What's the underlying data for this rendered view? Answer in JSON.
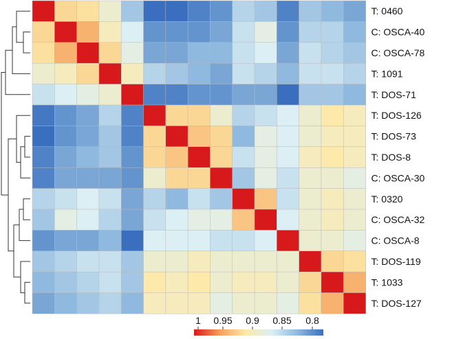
{
  "chart_data": {
    "type": "heatmap",
    "title": "",
    "xlabel": "",
    "ylabel": "",
    "labels": [
      "T: 0460",
      "C: OSCA-40",
      "C: OSCA-78",
      "T: 1091",
      "T: DOS-71",
      "T: DOS-126",
      "T: DOS-73",
      "T: DOS-8",
      "C: OSCA-30",
      "T: 0320",
      "C: OSCA-32",
      "C: OSCA-8",
      "T: DOS-119",
      "T: 1033",
      "T: DOS-127"
    ],
    "values": [
      [
        1.0,
        0.93,
        0.925,
        0.9,
        0.85,
        0.8,
        0.8,
        0.81,
        0.82,
        0.86,
        0.85,
        0.81,
        0.85,
        0.84,
        0.83
      ],
      [
        0.93,
        1.0,
        0.95,
        0.91,
        0.88,
        0.82,
        0.82,
        0.82,
        0.83,
        0.87,
        0.89,
        0.82,
        0.86,
        0.86,
        0.84
      ],
      [
        0.925,
        0.95,
        1.0,
        0.93,
        0.89,
        0.83,
        0.83,
        0.84,
        0.84,
        0.87,
        0.88,
        0.83,
        0.87,
        0.86,
        0.85
      ],
      [
        0.9,
        0.91,
        0.93,
        1.0,
        0.91,
        0.86,
        0.85,
        0.84,
        0.83,
        0.87,
        0.86,
        0.84,
        0.87,
        0.87,
        0.86
      ],
      [
        0.87,
        0.88,
        0.89,
        0.9,
        1.0,
        0.81,
        0.81,
        0.82,
        0.82,
        0.83,
        0.83,
        0.795,
        0.85,
        0.85,
        0.84
      ],
      [
        0.805,
        0.82,
        0.83,
        0.86,
        0.81,
        1.0,
        0.93,
        0.93,
        0.9,
        0.86,
        0.87,
        0.88,
        0.9,
        0.92,
        0.91
      ],
      [
        0.8,
        0.82,
        0.83,
        0.85,
        0.81,
        0.93,
        1.0,
        0.94,
        0.93,
        0.84,
        0.89,
        0.88,
        0.9,
        0.91,
        0.91
      ],
      [
        0.81,
        0.83,
        0.84,
        0.85,
        0.82,
        0.93,
        0.94,
        1.0,
        0.93,
        0.87,
        0.89,
        0.88,
        0.91,
        0.92,
        0.91
      ],
      [
        0.81,
        0.83,
        0.83,
        0.83,
        0.82,
        0.9,
        0.93,
        0.93,
        1.0,
        0.85,
        0.89,
        0.87,
        0.9,
        0.9,
        0.89
      ],
      [
        0.86,
        0.87,
        0.88,
        0.87,
        0.83,
        0.86,
        0.84,
        0.87,
        0.85,
        1.0,
        0.94,
        0.87,
        0.9,
        0.91,
        0.9
      ],
      [
        0.85,
        0.89,
        0.88,
        0.86,
        0.83,
        0.87,
        0.88,
        0.89,
        0.89,
        0.94,
        1.0,
        0.88,
        0.9,
        0.91,
        0.9
      ],
      [
        0.82,
        0.83,
        0.83,
        0.84,
        0.795,
        0.88,
        0.88,
        0.88,
        0.87,
        0.87,
        0.88,
        1.0,
        0.9,
        0.9,
        0.89
      ],
      [
        0.85,
        0.86,
        0.87,
        0.87,
        0.85,
        0.9,
        0.9,
        0.91,
        0.9,
        0.9,
        0.9,
        0.9,
        1.0,
        0.93,
        0.925
      ],
      [
        0.84,
        0.85,
        0.86,
        0.87,
        0.85,
        0.92,
        0.91,
        0.92,
        0.9,
        0.91,
        0.91,
        0.9,
        0.93,
        1.0,
        0.95
      ],
      [
        0.83,
        0.84,
        0.85,
        0.86,
        0.84,
        0.91,
        0.91,
        0.91,
        0.89,
        0.9,
        0.9,
        0.89,
        0.925,
        0.95,
        1.0
      ]
    ],
    "colorbar": {
      "ticks": [
        "1",
        "0.95",
        "0.9",
        "0.85",
        "0.8"
      ],
      "range": [
        0.8,
        1.0
      ],
      "colors": [
        "#d7191c",
        "#f6a05b",
        "#fde9a9",
        "#dbeff5",
        "#8fb9de",
        "#3a6fbf"
      ]
    },
    "dendrogram": "left",
    "grid": false,
    "legend": "bottom-center"
  }
}
